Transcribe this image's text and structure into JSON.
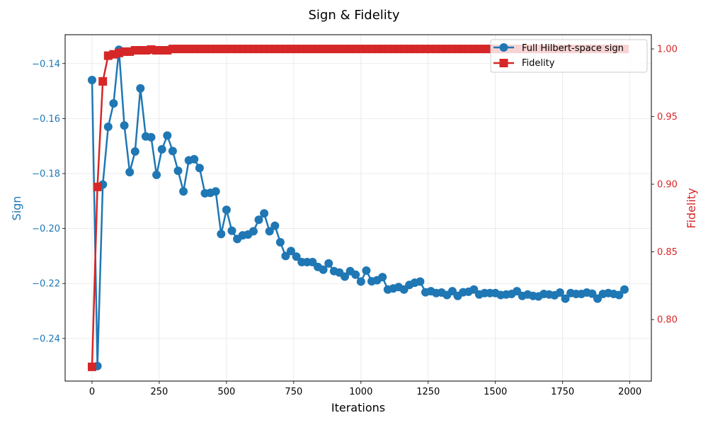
{
  "chart_data": {
    "type": "line",
    "title": "Sign & Fidelity",
    "xlabel": "Iterations",
    "ylabel_left": "Sign",
    "ylabel_right": "Fidelity",
    "xlim": [
      -100,
      2080
    ],
    "ylim_left": [
      -0.2555,
      -0.1295
    ],
    "ylim_right": [
      0.7545,
      1.0105
    ],
    "x_ticks": [
      0,
      250,
      500,
      750,
      1000,
      1250,
      1500,
      1750,
      2000
    ],
    "y_ticks_left": [
      -0.24,
      -0.22,
      -0.2,
      -0.18,
      -0.16,
      -0.14
    ],
    "y_ticks_left_labels": [
      "−0.24",
      "−0.22",
      "−0.20",
      "−0.18",
      "−0.16",
      "−0.14"
    ],
    "y_ticks_right": [
      0.8,
      0.85,
      0.9,
      0.95,
      1.0
    ],
    "y_ticks_right_labels": [
      "0.80",
      "0.85",
      "0.90",
      "0.95",
      "1.00"
    ],
    "grid": true,
    "legend_position": "top-right",
    "colors": {
      "sign": "#1f77b4",
      "fidelity": "#d62728"
    },
    "x": [
      0,
      20,
      40,
      60,
      80,
      100,
      120,
      140,
      160,
      180,
      200,
      220,
      240,
      260,
      280,
      300,
      320,
      340,
      360,
      380,
      400,
      420,
      440,
      460,
      480,
      500,
      520,
      540,
      560,
      580,
      600,
      620,
      640,
      660,
      680,
      700,
      720,
      740,
      760,
      780,
      800,
      820,
      840,
      860,
      880,
      900,
      920,
      940,
      960,
      980,
      1000,
      1020,
      1040,
      1060,
      1080,
      1100,
      1120,
      1140,
      1160,
      1180,
      1200,
      1220,
      1240,
      1260,
      1280,
      1300,
      1320,
      1340,
      1360,
      1380,
      1400,
      1420,
      1440,
      1460,
      1480,
      1500,
      1520,
      1540,
      1560,
      1580,
      1600,
      1620,
      1640,
      1660,
      1680,
      1700,
      1720,
      1740,
      1760,
      1780,
      1800,
      1820,
      1840,
      1860,
      1880,
      1900,
      1920,
      1940,
      1960,
      1980
    ],
    "series": [
      {
        "name": "Full Hilbert-space sign",
        "axis": "left",
        "marker": "circle",
        "values": [
          -0.146,
          -0.25,
          -0.184,
          -0.163,
          -0.1545,
          -0.135,
          -0.1625,
          -0.1795,
          -0.172,
          -0.149,
          -0.1665,
          -0.1668,
          -0.1805,
          -0.1712,
          -0.1662,
          -0.1718,
          -0.179,
          -0.1865,
          -0.1752,
          -0.1748,
          -0.178,
          -0.1872,
          -0.187,
          -0.1865,
          -0.202,
          -0.1932,
          -0.2008,
          -0.2038,
          -0.2025,
          -0.2022,
          -0.201,
          -0.1968,
          -0.1945,
          -0.201,
          -0.199,
          -0.205,
          -0.21,
          -0.2082,
          -0.2102,
          -0.2122,
          -0.2122,
          -0.2122,
          -0.214,
          -0.215,
          -0.2127,
          -0.2155,
          -0.216,
          -0.2175,
          -0.2155,
          -0.2168,
          -0.2193,
          -0.2153,
          -0.2192,
          -0.2188,
          -0.2177,
          -0.2222,
          -0.2218,
          -0.2213,
          -0.2222,
          -0.2205,
          -0.2197,
          -0.2193,
          -0.2232,
          -0.2228,
          -0.2235,
          -0.2233,
          -0.2242,
          -0.2228,
          -0.2245,
          -0.2232,
          -0.223,
          -0.2222,
          -0.224,
          -0.2235,
          -0.2235,
          -0.2235,
          -0.2242,
          -0.224,
          -0.2238,
          -0.2228,
          -0.2245,
          -0.224,
          -0.2245,
          -0.2247,
          -0.2238,
          -0.224,
          -0.2243,
          -0.2233,
          -0.2255,
          -0.2235,
          -0.2238,
          -0.2238,
          -0.2233,
          -0.2237,
          -0.2255,
          -0.2238,
          -0.2235,
          -0.2238,
          -0.2242,
          -0.2222
        ]
      },
      {
        "name": "Fidelity",
        "axis": "right",
        "marker": "square",
        "values": [
          0.765,
          0.898,
          0.976,
          0.995,
          0.996,
          0.997,
          0.998,
          0.998,
          0.999,
          0.999,
          0.999,
          0.9995,
          0.999,
          0.999,
          0.999,
          1.0,
          1.0,
          1.0,
          1.0,
          1.0,
          1.0,
          1.0,
          1.0,
          1.0,
          1.0,
          1.0,
          1.0,
          1.0,
          1.0,
          1.0,
          1.0,
          1.0,
          1.0,
          1.0,
          1.0,
          1.0,
          1.0,
          1.0,
          1.0,
          1.0,
          1.0,
          1.0,
          1.0,
          1.0,
          1.0,
          1.0,
          1.0,
          1.0,
          1.0,
          1.0,
          1.0,
          1.0,
          1.0,
          1.0,
          1.0,
          1.0,
          1.0,
          1.0,
          1.0,
          1.0,
          1.0,
          1.0,
          1.0,
          1.0,
          1.0,
          1.0,
          1.0,
          1.0,
          1.0,
          1.0,
          1.0,
          1.0,
          1.0,
          1.0,
          1.0,
          1.0,
          1.0,
          1.0,
          1.0,
          1.0,
          1.0,
          1.0,
          1.0,
          1.0,
          1.0,
          1.0,
          1.0,
          1.0,
          1.0,
          1.0,
          1.0,
          1.0,
          1.0,
          1.0,
          1.0,
          1.0,
          1.0,
          1.0,
          1.0,
          1.0
        ]
      }
    ]
  }
}
